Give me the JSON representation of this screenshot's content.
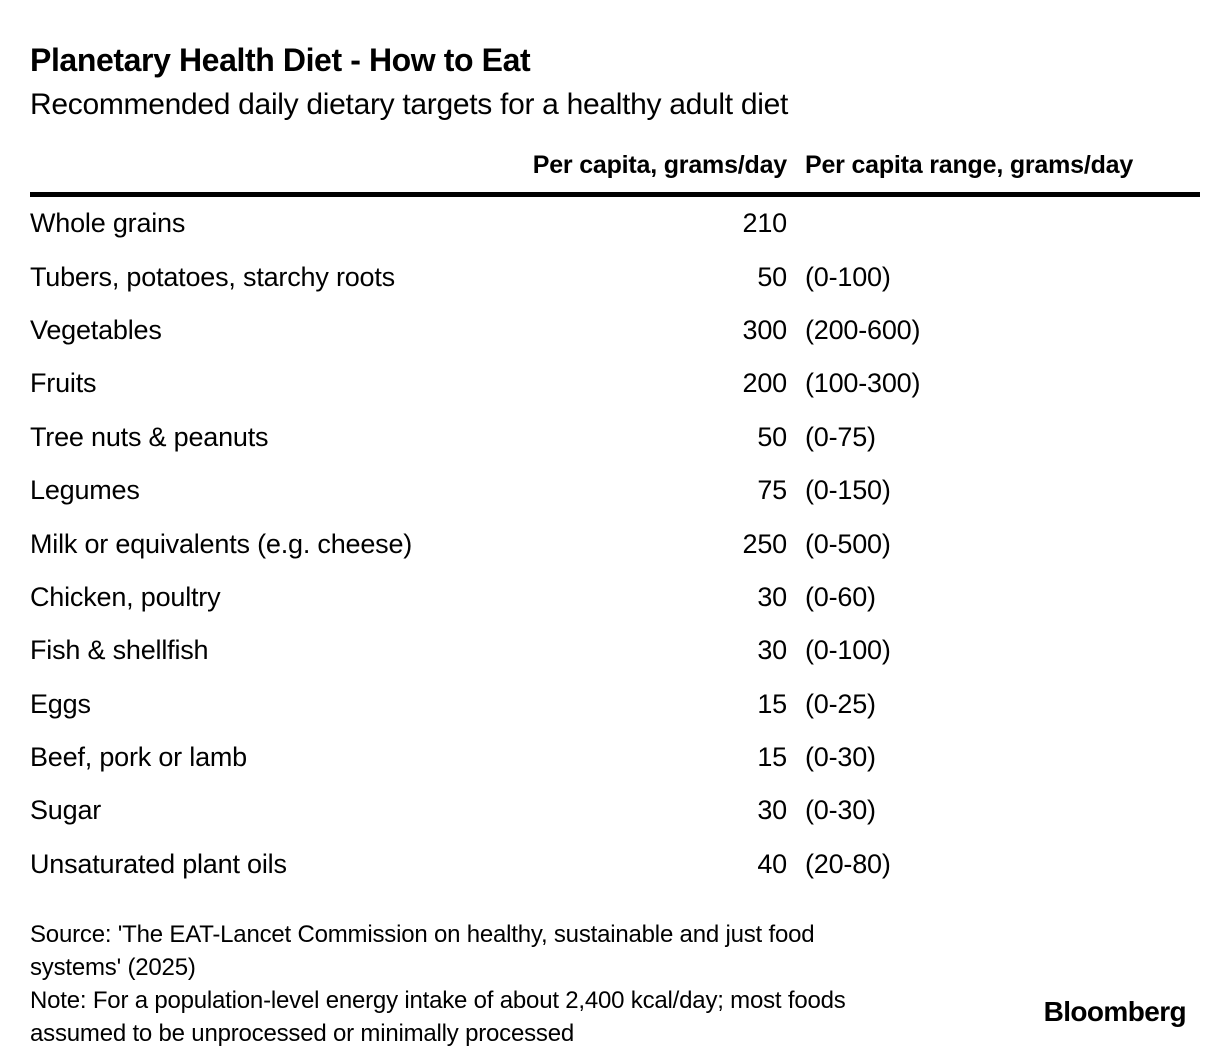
{
  "chart_data": {
    "type": "table",
    "title": "Planetary Health Diet - How to Eat",
    "subtitle": "Recommended daily dietary targets for a healthy adult diet",
    "columns": [
      "",
      "Per capita, grams/day",
      "Per capita range, grams/day"
    ],
    "rows": [
      {
        "label": "Whole grains",
        "value": "210",
        "range": ""
      },
      {
        "label": "Tubers, potatoes, starchy roots",
        "value": "50",
        "range": "(0-100)"
      },
      {
        "label": "Vegetables",
        "value": "300",
        "range": "(200-600)"
      },
      {
        "label": "Fruits",
        "value": "200",
        "range": "(100-300)"
      },
      {
        "label": "Tree nuts & peanuts",
        "value": "50",
        "range": "(0-75)"
      },
      {
        "label": "Legumes",
        "value": "75",
        "range": "(0-150)"
      },
      {
        "label": "Milk or equivalents (e.g. cheese)",
        "value": "250",
        "range": "(0-500)"
      },
      {
        "label": "Chicken, poultry",
        "value": "30",
        "range": "(0-60)"
      },
      {
        "label": "Fish & shellfish",
        "value": "30",
        "range": "(0-100)"
      },
      {
        "label": "Eggs",
        "value": "15",
        "range": "(0-25)"
      },
      {
        "label": "Beef, pork or lamb",
        "value": "15",
        "range": "(0-30)"
      },
      {
        "label": "Sugar",
        "value": "30",
        "range": "(0-30)"
      },
      {
        "label": "Unsaturated plant oils",
        "value": "40",
        "range": "(20-80)"
      }
    ],
    "layout": {
      "grid": false,
      "header_rule": true
    }
  },
  "footer": {
    "source_lines": [
      "Source: 'The EAT-Lancet Commission on healthy, sustainable and just food",
      "systems' (2025)"
    ],
    "note_lines": [
      "Note: For a population-level energy intake of about 2,400 kcal/day; most foods",
      "assumed to be unprocessed or minimally processed"
    ],
    "brand": "Bloomberg"
  },
  "colors": {
    "background": "#ffffff",
    "text": "#000000",
    "rule": "#000000"
  }
}
